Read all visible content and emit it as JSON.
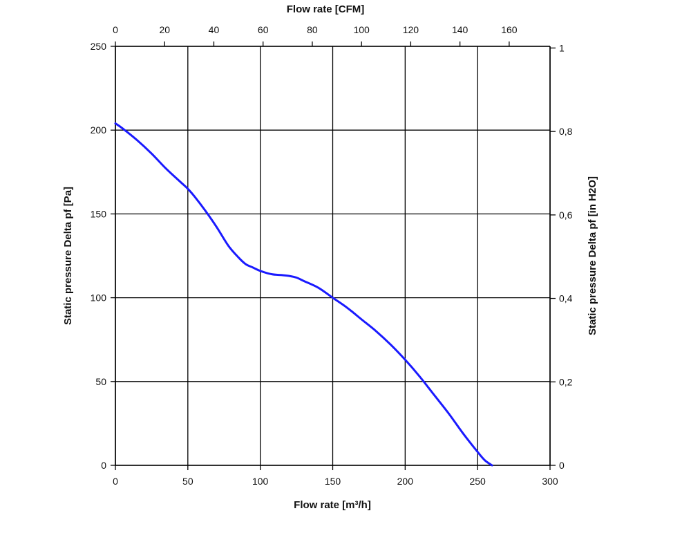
{
  "chart_data": {
    "type": "line",
    "title": "",
    "xlabel": "Flow rate [m³/h]",
    "ylabel": "Static pressure Delta pf [Pa]",
    "x2label": "Flow rate [CFM]",
    "y2label": "Static pressure Delta pf [in H2O]",
    "xlim": [
      0,
      300
    ],
    "ylim": [
      0,
      250
    ],
    "x2lim": [
      0,
      176.6
    ],
    "y2lim": [
      0,
      1.004
    ],
    "xticks": [
      "0",
      "50",
      "100",
      "150",
      "200",
      "250",
      "300"
    ],
    "yticks": [
      "0",
      "50",
      "100",
      "150",
      "200",
      "250"
    ],
    "x2ticks": [
      "0",
      "20",
      "40",
      "60",
      "80",
      "100",
      "120",
      "140",
      "160"
    ],
    "y2ticks": [
      "0",
      "0,2",
      "0,4",
      "0,6",
      "0,8",
      "1"
    ],
    "grid": true,
    "series": [
      {
        "color": "#1a1aff",
        "x": [
          0,
          5,
          15,
          25,
          35,
          45,
          50,
          55,
          62,
          70,
          78,
          85,
          90,
          95,
          100,
          108,
          115,
          120,
          125,
          130,
          140,
          150,
          160,
          170,
          180,
          190,
          200,
          210,
          220,
          230,
          240,
          250,
          255,
          260
        ],
        "y": [
          204,
          201,
          194,
          186,
          177,
          169,
          165,
          160,
          152,
          142,
          131,
          124,
          120,
          118,
          116,
          114,
          113.5,
          113,
          112,
          110,
          106,
          100,
          94,
          87,
          80,
          72,
          63,
          53,
          42,
          31,
          19,
          8,
          3,
          0
        ]
      }
    ]
  }
}
